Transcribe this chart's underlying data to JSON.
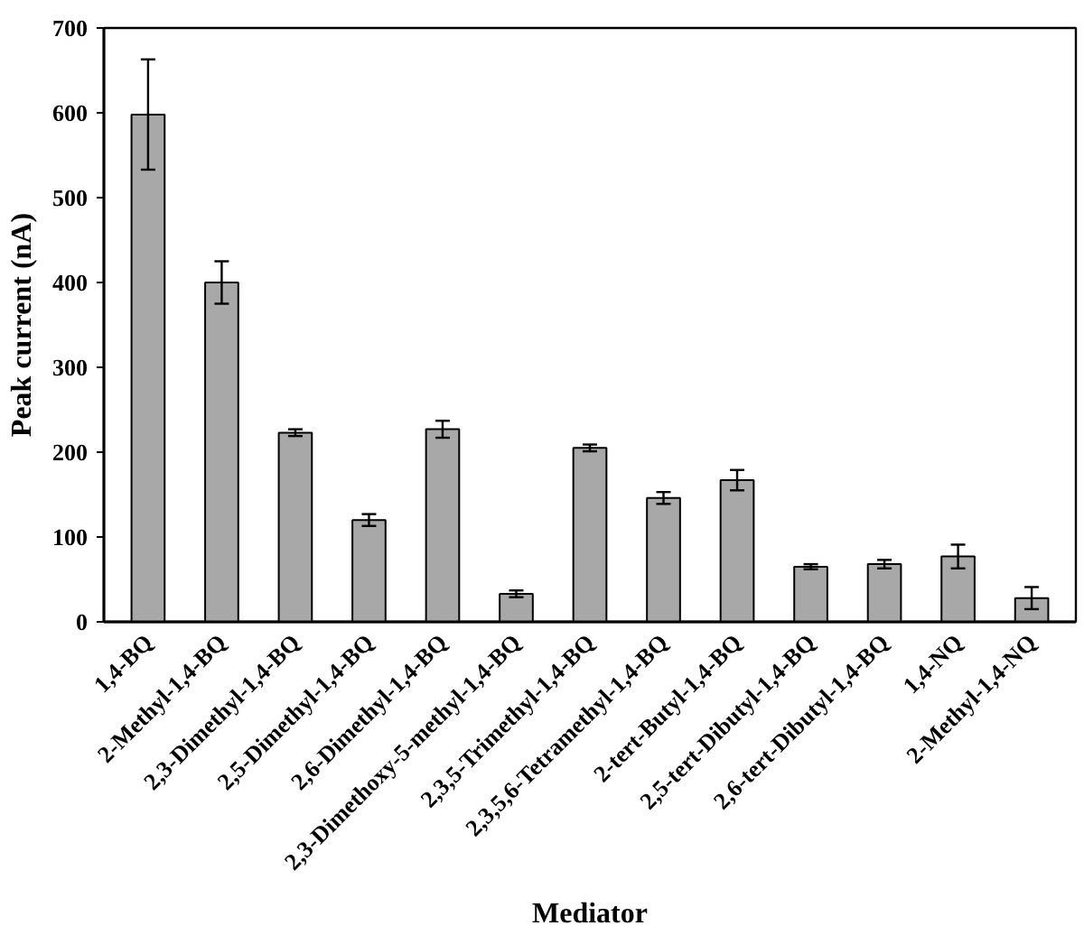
{
  "chart_data": {
    "type": "bar",
    "xlabel": "Mediator",
    "ylabel": "Peak current (nA)",
    "categories": [
      "1,4-BQ",
      "2-Methyl-1,4-BQ",
      "2,3-Dimethyl-1,4-BQ",
      "2,5-Dimethyl-1,4-BQ",
      "2,6-Dimethyl-1,4-BQ",
      "2,3-Dimethoxy-5-methyl-1,4-BQ",
      "2,3,5-Trimethyl-1,4-BQ",
      "2,3,5,6-Tetramethyl-1,4-BQ",
      "2-tert-Butyl-1,4-BQ",
      "2,5-tert-Dibutyl-1,4-BQ",
      "2,6-tert-Dibutyl-1,4-BQ",
      "1,4-NQ",
      "2-Methyl-1,4-NQ"
    ],
    "values": [
      598,
      400,
      223,
      120,
      227,
      33,
      205,
      146,
      167,
      65,
      68,
      77,
      28
    ],
    "errors": [
      65,
      25,
      4,
      7,
      10,
      4,
      4,
      7,
      12,
      3,
      5,
      14,
      13
    ],
    "color": "#a8a8a8",
    "ylim": [
      0,
      700
    ],
    "yticks": [
      0,
      100,
      200,
      300,
      400,
      500,
      600,
      700
    ],
    "grid": false
  }
}
